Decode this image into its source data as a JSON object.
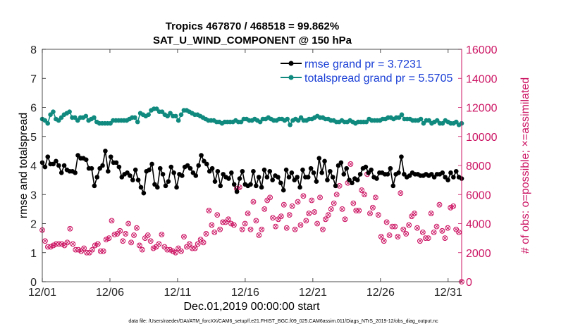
{
  "chart_data": {
    "type": "line",
    "title": "Tropics 467870 / 468518 = 99.862%",
    "subtitle": "SAT_U_WIND_COMPONENT @ 150 hPa",
    "xlabel": "Dec.01,2019 00:00:00 start",
    "ylabel": "rmse and totalspread",
    "y2label": "# of obs: o=possible; ×=assimilated",
    "footnote": "data file: /Users/raeder/DAI/ATM_forcXX/CAM6_setup/f.e21.FHIST_BGC.f09_025.CAM6assim.011/Diags_NTrS_2019-12/obs_diag_output.nc",
    "xlim": [
      1,
      32
    ],
    "ylim": [
      0,
      8
    ],
    "y2lim": [
      0,
      16000
    ],
    "xticks": [
      1,
      6,
      11,
      16,
      21,
      26,
      31
    ],
    "xtick_labels": [
      "12/01",
      "12/06",
      "12/11",
      "12/16",
      "12/21",
      "12/26",
      "12/31"
    ],
    "yticks": [
      "0",
      "1",
      "2",
      "3",
      "4",
      "5",
      "6",
      "7",
      "8"
    ],
    "y2ticks": [
      "0",
      "2000",
      "4000",
      "6000",
      "8000",
      "10000",
      "12000",
      "14000",
      "16000"
    ],
    "legend_position": "top-right",
    "colors": {
      "rmse": "#000000",
      "spread": "#108a7e",
      "obs": "#cc1463",
      "legend_text": "#1a3fd6"
    },
    "series": [
      {
        "name": "rmse grand pr = 3.7231",
        "color": "#000000",
        "values": [
          4.1,
          3.95,
          4.3,
          4.05,
          4.05,
          4.15,
          4.0,
          3.75,
          4.0,
          3.85,
          3.8,
          3.8,
          3.75,
          4.35,
          4.25,
          4.25,
          4.2,
          3.9,
          3.9,
          3.3,
          3.6,
          3.9,
          4.0,
          4.5,
          3.8,
          4.3,
          4.1,
          4.1,
          3.95,
          3.6,
          3.7,
          3.75,
          3.65,
          3.5,
          3.85,
          3.5,
          3.25,
          3.05,
          3.8,
          3.85,
          4.05,
          3.35,
          3.25,
          3.9,
          3.7,
          3.3,
          3.45,
          3.95,
          3.75,
          3.25,
          3.7,
          3.65,
          3.95,
          4.0,
          3.9,
          3.75,
          3.65,
          4.0,
          4.35,
          4.15,
          4.05,
          3.8,
          3.9,
          3.45,
          3.8,
          3.3,
          3.7,
          3.6,
          3.55,
          3.75,
          3.35,
          3.1,
          3.55,
          3.8,
          3.35,
          3.3,
          3.35,
          3.8,
          3.3,
          3.6,
          3.25,
          3.85,
          3.6,
          3.8,
          3.5,
          3.65,
          3.6,
          3.4,
          3.15,
          3.85,
          3.6,
          3.75,
          3.5,
          3.6,
          3.25,
          3.85,
          3.6,
          3.6,
          3.9,
          3.75,
          3.45,
          4.25,
          3.75,
          4.15,
          3.5,
          3.8,
          3.6,
          3.3,
          4.0,
          4.1,
          3.7,
          3.9,
          3.5,
          3.4,
          3.55,
          3.5,
          3.7,
          3.9,
          3.95,
          3.75,
          3.85,
          3.6,
          3.55,
          3.75,
          3.75,
          3.7,
          3.7,
          3.9,
          3.3,
          3.7,
          3.75,
          4.3,
          3.7,
          3.6,
          3.65,
          3.75,
          3.7,
          3.7,
          3.65,
          3.65,
          3.7,
          3.65,
          3.7,
          3.6,
          3.7,
          3.7,
          3.75,
          3.6,
          3.5,
          3.75,
          3.6,
          3.8,
          3.6,
          3.55
        ]
      },
      {
        "name": "totalspread grand pr = 5.5705",
        "color": "#108a7e",
        "values": [
          5.6,
          5.55,
          5.45,
          5.75,
          5.85,
          5.6,
          5.55,
          5.65,
          5.75,
          5.8,
          5.85,
          5.65,
          5.65,
          5.55,
          5.65,
          5.65,
          5.7,
          5.55,
          5.6,
          5.65,
          5.5,
          5.45,
          5.45,
          5.45,
          5.45,
          5.45,
          5.55,
          5.55,
          5.55,
          5.55,
          5.55,
          5.55,
          5.6,
          5.65,
          5.65,
          5.5,
          5.8,
          5.75,
          5.7,
          5.75,
          5.9,
          5.95,
          5.95,
          5.85,
          5.85,
          5.75,
          5.7,
          5.8,
          5.7,
          5.7,
          5.55,
          5.75,
          5.9,
          5.9,
          5.85,
          5.8,
          5.75,
          5.75,
          5.7,
          5.65,
          5.6,
          5.55,
          5.55,
          5.55,
          5.5,
          5.5,
          5.45,
          5.5,
          5.5,
          5.5,
          5.5,
          5.55,
          5.5,
          5.5,
          5.6,
          5.6,
          5.55,
          5.55,
          5.6,
          5.55,
          5.5,
          5.6,
          5.6,
          5.65,
          5.6,
          5.55,
          5.55,
          5.6,
          5.6,
          5.55,
          5.6,
          5.4,
          5.55,
          5.6,
          5.55,
          5.65,
          5.55,
          5.55,
          5.6,
          5.6,
          5.65,
          5.7,
          5.65,
          5.65,
          5.6,
          5.6,
          5.55,
          5.55,
          5.5,
          5.5,
          5.55,
          5.5,
          5.5,
          5.55,
          5.5,
          5.45,
          5.5,
          5.5,
          5.5,
          5.5,
          5.6,
          5.55,
          5.55,
          5.55,
          5.55,
          5.6,
          5.6,
          5.65,
          5.65,
          5.6,
          5.65,
          5.65,
          5.75,
          5.6,
          5.6,
          5.6,
          5.55,
          5.55,
          5.55,
          5.6,
          5.45,
          5.55,
          5.55,
          5.45,
          5.5,
          5.55,
          5.45,
          5.45,
          5.55,
          5.5,
          5.45,
          5.45,
          5.5,
          5.4,
          5.45
        ]
      }
    ],
    "obs_counts": [
      3550,
      2800,
      2400,
      2400,
      2500,
      2600,
      2600,
      2600,
      2500,
      2700,
      3650,
      2600,
      2200,
      2200,
      2100,
      2300,
      2000,
      2000,
      2200,
      2500,
      2600,
      2100,
      2100,
      2900,
      3000,
      4200,
      3250,
      3300,
      3500,
      2800,
      3300,
      4000,
      2700,
      3200,
      3700,
      2500,
      2200,
      3000,
      3200,
      2800,
      2300,
      2400,
      2600,
      3250,
      2400,
      2200,
      2200,
      2100,
      2000,
      2300,
      2100,
      3100,
      2400,
      2600,
      2300,
      2300,
      2600,
      2900,
      2700,
      3300,
      4900,
      3900,
      3400,
      4600,
      3600,
      4100,
      4100,
      4300,
      4000,
      3900,
      6400,
      6500,
      3600,
      4000,
      4700,
      3600,
      5500,
      4200,
      3200,
      3600,
      5000,
      5600,
      5800,
      4400,
      3800,
      4300,
      4500,
      5300,
      3700,
      4600,
      5200,
      3600,
      5500,
      3900,
      5900,
      4200,
      4700,
      5600,
      4800,
      4000,
      5800,
      3600,
      4300,
      4600,
      5000,
      5400,
      6000,
      6600,
      5000,
      4300,
      6800,
      8100,
      5400,
      4900,
      4900,
      6300,
      6000,
      7400,
      4700,
      5100,
      5800,
      4600,
      3100,
      2800,
      4100,
      3200,
      3800,
      3800,
      3100,
      6100,
      3600,
      3300,
      3900,
      4500,
      4700,
      3700,
      2800,
      3400,
      3000,
      3000,
      4700,
      3400,
      3800,
      5300,
      3500,
      3000,
      3700,
      5100,
      5200,
      3600,
      3400,
      0
    ]
  }
}
